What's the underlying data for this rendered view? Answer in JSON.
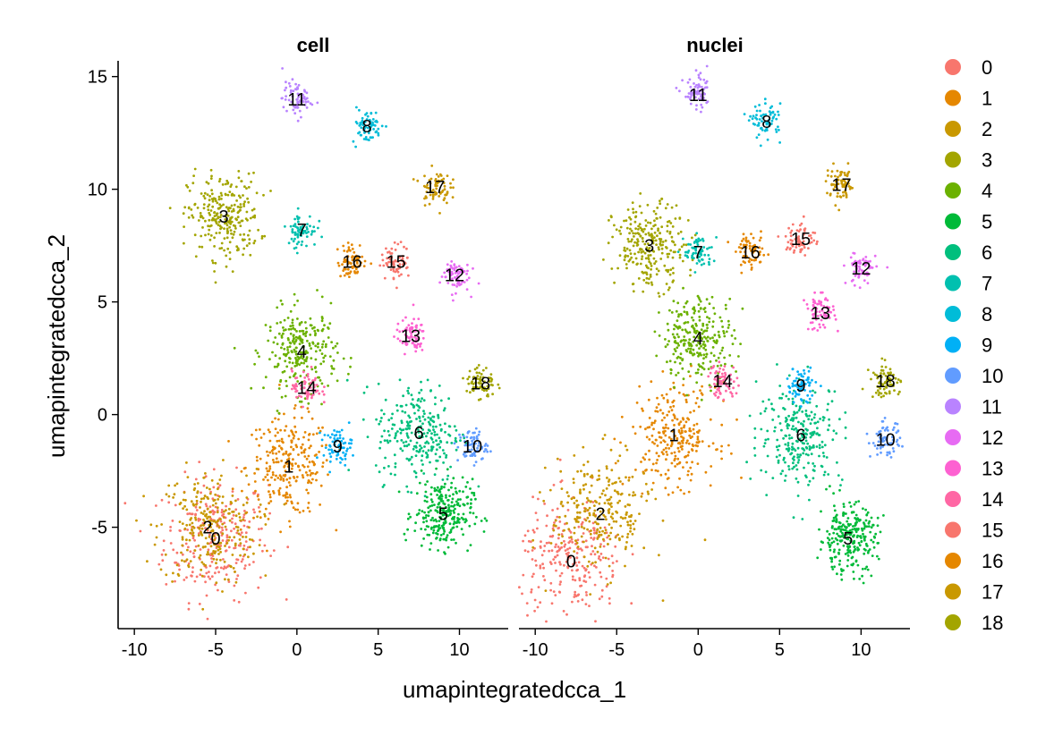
{
  "chart_data": {
    "type": "scatter",
    "subtype": "UMAP embedding, faceted, points colored by cluster",
    "xlabel": "umapintegratedcca_1",
    "ylabel": "umapintegratedcca_2",
    "xlim": [
      -11,
      13
    ],
    "ylim": [
      -9.5,
      15.7
    ],
    "x_ticks": [
      -10,
      -5,
      0,
      5,
      10
    ],
    "y_ticks": [
      -5,
      0,
      5,
      10,
      15
    ],
    "grid": false,
    "legend_position": "right",
    "legend": [
      {
        "label": "0",
        "color": "#F8766D"
      },
      {
        "label": "1",
        "color": "#E58700"
      },
      {
        "label": "2",
        "color": "#C99800"
      },
      {
        "label": "3",
        "color": "#A3A500"
      },
      {
        "label": "4",
        "color": "#6BB100"
      },
      {
        "label": "5",
        "color": "#00BA38"
      },
      {
        "label": "6",
        "color": "#00BF7D"
      },
      {
        "label": "7",
        "color": "#00C0AF"
      },
      {
        "label": "8",
        "color": "#00BCD8"
      },
      {
        "label": "9",
        "color": "#00B0F6"
      },
      {
        "label": "10",
        "color": "#619CFF"
      },
      {
        "label": "11",
        "color": "#B983FF"
      },
      {
        "label": "12",
        "color": "#E76BF3"
      },
      {
        "label": "13",
        "color": "#FD61D1"
      },
      {
        "label": "14",
        "color": "#FF67A4"
      },
      {
        "label": "15",
        "color": "#F8766D"
      },
      {
        "label": "16",
        "color": "#E58700"
      },
      {
        "label": "17",
        "color": "#C99800"
      },
      {
        "label": "18",
        "color": "#A3A500"
      }
    ],
    "panels": [
      {
        "title": "cell",
        "clusters": [
          {
            "id": "0",
            "x": -5.0,
            "y": -5.5
          },
          {
            "id": "1",
            "x": -0.5,
            "y": -2.3
          },
          {
            "id": "2",
            "x": -5.5,
            "y": -5.0
          },
          {
            "id": "3",
            "x": -4.5,
            "y": 8.8
          },
          {
            "id": "4",
            "x": 0.3,
            "y": 2.8
          },
          {
            "id": "5",
            "x": 9.0,
            "y": -4.4
          },
          {
            "id": "6",
            "x": 7.5,
            "y": -0.8
          },
          {
            "id": "7",
            "x": 0.3,
            "y": 8.2
          },
          {
            "id": "8",
            "x": 4.3,
            "y": 12.8
          },
          {
            "id": "9",
            "x": 2.5,
            "y": -1.4
          },
          {
            "id": "10",
            "x": 10.8,
            "y": -1.4
          },
          {
            "id": "11",
            "x": 0.0,
            "y": 14.0
          },
          {
            "id": "12",
            "x": 9.7,
            "y": 6.2
          },
          {
            "id": "13",
            "x": 7.0,
            "y": 3.5
          },
          {
            "id": "14",
            "x": 0.6,
            "y": 1.2
          },
          {
            "id": "15",
            "x": 6.1,
            "y": 6.8
          },
          {
            "id": "16",
            "x": 3.4,
            "y": 6.8
          },
          {
            "id": "17",
            "x": 8.5,
            "y": 10.1
          },
          {
            "id": "18",
            "x": 11.3,
            "y": 1.4
          }
        ]
      },
      {
        "title": "nuclei",
        "clusters": [
          {
            "id": "0",
            "x": -7.8,
            "y": -6.5
          },
          {
            "id": "1",
            "x": -1.5,
            "y": -0.9
          },
          {
            "id": "2",
            "x": -6.0,
            "y": -4.4
          },
          {
            "id": "3",
            "x": -3.0,
            "y": 7.5
          },
          {
            "id": "4",
            "x": 0.0,
            "y": 3.4
          },
          {
            "id": "5",
            "x": 9.2,
            "y": -5.5
          },
          {
            "id": "6",
            "x": 6.3,
            "y": -0.9
          },
          {
            "id": "7",
            "x": 0.0,
            "y": 7.2
          },
          {
            "id": "8",
            "x": 4.2,
            "y": 13.0
          },
          {
            "id": "9",
            "x": 6.3,
            "y": 1.3
          },
          {
            "id": "10",
            "x": 11.5,
            "y": -1.1
          },
          {
            "id": "11",
            "x": 0.0,
            "y": 14.2
          },
          {
            "id": "12",
            "x": 10.0,
            "y": 6.5
          },
          {
            "id": "13",
            "x": 7.5,
            "y": 4.5
          },
          {
            "id": "14",
            "x": 1.5,
            "y": 1.5
          },
          {
            "id": "15",
            "x": 6.3,
            "y": 7.8
          },
          {
            "id": "16",
            "x": 3.2,
            "y": 7.2
          },
          {
            "id": "17",
            "x": 8.8,
            "y": 10.2
          },
          {
            "id": "18",
            "x": 11.5,
            "y": 1.5
          }
        ]
      }
    ]
  }
}
